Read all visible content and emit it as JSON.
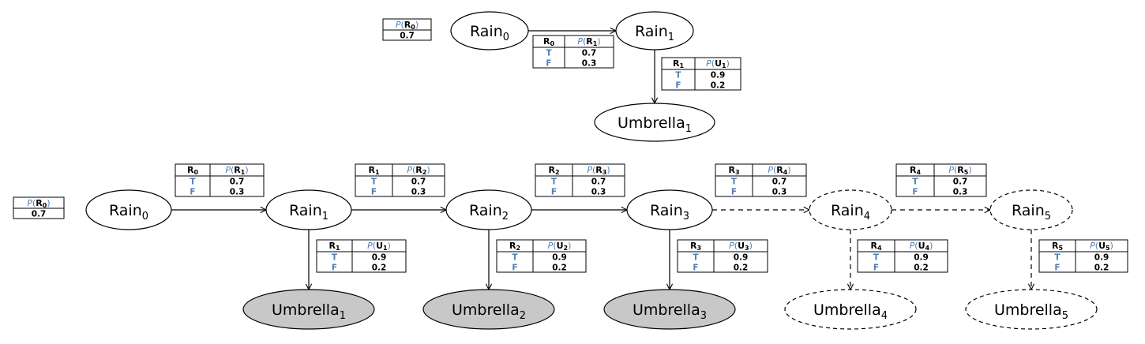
{
  "colors": {
    "accent": "#4f7fb8",
    "observed_fill": "#c8c8c8",
    "stroke": "#000000"
  },
  "top_network": {
    "prior": {
      "header_fn": "P",
      "header_var": "R",
      "header_sub": "0",
      "value": "0.7"
    },
    "nodes": [
      {
        "id": "t_r0",
        "base": "Rain",
        "sub": "0",
        "observed": false,
        "dashed": false
      },
      {
        "id": "t_r1",
        "base": "Rain",
        "sub": "1",
        "observed": false,
        "dashed": false
      },
      {
        "id": "t_u1",
        "base": "Umbrella",
        "sub": "1",
        "observed": false,
        "dashed": false
      }
    ],
    "edges": [
      {
        "from": "t_r0",
        "to": "t_r1",
        "dashed": false
      },
      {
        "from": "t_r1",
        "to": "t_u1",
        "dashed": false
      }
    ],
    "cpts": [
      {
        "id": "t_trans",
        "parent": "R",
        "parent_sub": "0",
        "child": "R",
        "child_sub": "1",
        "rows": [
          {
            "cond": "T",
            "p": "0.7"
          },
          {
            "cond": "F",
            "p": "0.3"
          }
        ]
      },
      {
        "id": "t_sens",
        "parent": "R",
        "parent_sub": "1",
        "child": "U",
        "child_sub": "1",
        "rows": [
          {
            "cond": "T",
            "p": "0.9"
          },
          {
            "cond": "F",
            "p": "0.2"
          }
        ]
      }
    ]
  },
  "unrolled_network": {
    "prior": {
      "header_fn": "P",
      "header_var": "R",
      "header_sub": "0",
      "value": "0.7"
    },
    "nodes": [
      {
        "id": "r0",
        "base": "Rain",
        "sub": "0",
        "observed": false,
        "dashed": false
      },
      {
        "id": "r1",
        "base": "Rain",
        "sub": "1",
        "observed": false,
        "dashed": false
      },
      {
        "id": "r2",
        "base": "Rain",
        "sub": "2",
        "observed": false,
        "dashed": false
      },
      {
        "id": "r3",
        "base": "Rain",
        "sub": "3",
        "observed": false,
        "dashed": false
      },
      {
        "id": "r4",
        "base": "Rain",
        "sub": "4",
        "observed": false,
        "dashed": true
      },
      {
        "id": "r5",
        "base": "Rain",
        "sub": "5",
        "observed": false,
        "dashed": true
      },
      {
        "id": "u1",
        "base": "Umbrella",
        "sub": "1",
        "observed": true,
        "dashed": false
      },
      {
        "id": "u2",
        "base": "Umbrella",
        "sub": "2",
        "observed": true,
        "dashed": false
      },
      {
        "id": "u3",
        "base": "Umbrella",
        "sub": "3",
        "observed": true,
        "dashed": false
      },
      {
        "id": "u4",
        "base": "Umbrella",
        "sub": "4",
        "observed": false,
        "dashed": true
      },
      {
        "id": "u5",
        "base": "Umbrella",
        "sub": "5",
        "observed": false,
        "dashed": true
      }
    ],
    "edges": [
      {
        "from": "r0",
        "to": "r1",
        "dashed": false
      },
      {
        "from": "r1",
        "to": "r2",
        "dashed": false
      },
      {
        "from": "r2",
        "to": "r3",
        "dashed": false
      },
      {
        "from": "r3",
        "to": "r4",
        "dashed": true
      },
      {
        "from": "r4",
        "to": "r5",
        "dashed": true
      },
      {
        "from": "r1",
        "to": "u1",
        "dashed": false
      },
      {
        "from": "r2",
        "to": "u2",
        "dashed": false
      },
      {
        "from": "r3",
        "to": "u3",
        "dashed": false
      },
      {
        "from": "r4",
        "to": "u4",
        "dashed": true
      },
      {
        "from": "r5",
        "to": "u5",
        "dashed": true
      }
    ],
    "cpts": [
      {
        "id": "trans1",
        "parent": "R",
        "parent_sub": "0",
        "child": "R",
        "child_sub": "1",
        "rows": [
          {
            "cond": "T",
            "p": "0.7"
          },
          {
            "cond": "F",
            "p": "0.3"
          }
        ]
      },
      {
        "id": "trans2",
        "parent": "R",
        "parent_sub": "1",
        "child": "R",
        "child_sub": "2",
        "rows": [
          {
            "cond": "T",
            "p": "0.7"
          },
          {
            "cond": "F",
            "p": "0.3"
          }
        ]
      },
      {
        "id": "trans3",
        "parent": "R",
        "parent_sub": "2",
        "child": "R",
        "child_sub": "3",
        "rows": [
          {
            "cond": "T",
            "p": "0.7"
          },
          {
            "cond": "F",
            "p": "0.3"
          }
        ]
      },
      {
        "id": "trans4",
        "parent": "R",
        "parent_sub": "3",
        "child": "R",
        "child_sub": "4",
        "rows": [
          {
            "cond": "T",
            "p": "0.7"
          },
          {
            "cond": "F",
            "p": "0.3"
          }
        ]
      },
      {
        "id": "trans5",
        "parent": "R",
        "parent_sub": "4",
        "child": "R",
        "child_sub": "5",
        "rows": [
          {
            "cond": "T",
            "p": "0.7"
          },
          {
            "cond": "F",
            "p": "0.3"
          }
        ]
      },
      {
        "id": "sens1",
        "parent": "R",
        "parent_sub": "1",
        "child": "U",
        "child_sub": "1",
        "rows": [
          {
            "cond": "T",
            "p": "0.9"
          },
          {
            "cond": "F",
            "p": "0.2"
          }
        ]
      },
      {
        "id": "sens2",
        "parent": "R",
        "parent_sub": "2",
        "child": "U",
        "child_sub": "2",
        "rows": [
          {
            "cond": "T",
            "p": "0.9"
          },
          {
            "cond": "F",
            "p": "0.2"
          }
        ]
      },
      {
        "id": "sens3",
        "parent": "R",
        "parent_sub": "3",
        "child": "U",
        "child_sub": "3",
        "rows": [
          {
            "cond": "T",
            "p": "0.9"
          },
          {
            "cond": "F",
            "p": "0.2"
          }
        ]
      },
      {
        "id": "sens4",
        "parent": "R",
        "parent_sub": "4",
        "child": "U",
        "child_sub": "4",
        "rows": [
          {
            "cond": "T",
            "p": "0.9"
          },
          {
            "cond": "F",
            "p": "0.2"
          }
        ]
      },
      {
        "id": "sens5",
        "parent": "R",
        "parent_sub": "5",
        "child": "U",
        "child_sub": "5",
        "rows": [
          {
            "cond": "T",
            "p": "0.9"
          },
          {
            "cond": "F",
            "p": "0.2"
          }
        ]
      }
    ]
  }
}
